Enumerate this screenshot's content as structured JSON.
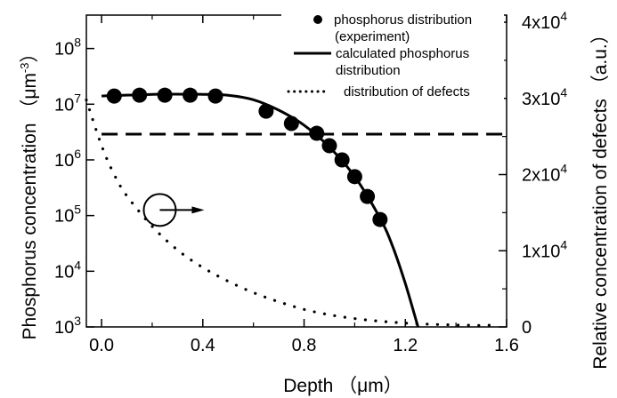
{
  "chart_data": {
    "type": "scatter",
    "xlabel": "Depth （μm）",
    "ylabel_left": "Phosphorus concentration （μm",
    "ylabel_left_sup": "-3",
    "ylabel_left_end": "）",
    "ylabel_right": "Relative concentration of defects （a.u.）",
    "xlim": [
      -0.06,
      1.6
    ],
    "ylim_left_log10": [
      3,
      8.6
    ],
    "ylim_right": [
      0,
      40000
    ],
    "x_ticks": [
      "0.0",
      "0.4",
      "0.8",
      "1.2",
      "1.6"
    ],
    "x_tick_values": [
      0.0,
      0.4,
      0.8,
      1.2,
      1.6
    ],
    "y_left_ticks": [
      {
        "base": "10",
        "exp": "3",
        "value": 1000
      },
      {
        "base": "10",
        "exp": "4",
        "value": 10000
      },
      {
        "base": "10",
        "exp": "5",
        "value": 100000
      },
      {
        "base": "10",
        "exp": "6",
        "value": 1000000
      },
      {
        "base": "10",
        "exp": "7",
        "value": 10000000
      },
      {
        "base": "10",
        "exp": "8",
        "value": 100000000
      }
    ],
    "y_right_ticks": [
      {
        "base": "",
        "exp": "",
        "label": "0",
        "value": 0
      },
      {
        "base": "1x10",
        "exp": "4",
        "value": 10000
      },
      {
        "base": "2x10",
        "exp": "4",
        "value": 20000
      },
      {
        "base": "3x10",
        "exp": "4",
        "value": 30000
      },
      {
        "base": "4x10",
        "exp": "4",
        "value": 40000
      }
    ],
    "legend_position": "top-right",
    "series": [
      {
        "name": "phosphorus distribution (experiment)",
        "legend_lines": [
          "phosphorus distribution",
          "(experiment)"
        ],
        "kind": "scatter",
        "axis": "left",
        "x": [
          0.05,
          0.15,
          0.25,
          0.35,
          0.45,
          0.65,
          0.75,
          0.85,
          0.9,
          0.95,
          1.0,
          1.05,
          1.1
        ],
        "y": [
          14000000.0,
          14500000.0,
          14500000.0,
          14500000.0,
          14000000.0,
          7500000.0,
          4500000.0,
          3000000.0,
          1800000.0,
          1000000.0,
          500000.0,
          220000.0,
          85000.0
        ],
        "color": "#000000"
      },
      {
        "name": "calculated phosphorus distribution",
        "legend_lines": [
          "calculated phosphorus",
          "distribution"
        ],
        "kind": "line",
        "axis": "left",
        "x": [
          0.0,
          0.2,
          0.4,
          0.5,
          0.6,
          0.7,
          0.8,
          0.9,
          1.0,
          1.1,
          1.15,
          1.2,
          1.25
        ],
        "y": [
          14000000.0,
          15000000.0,
          15000000.0,
          14500000.0,
          12000000.0,
          7800000.0,
          4200000.0,
          1700000.0,
          500000.0,
          90000.0,
          28000.0,
          6000.0,
          1000.0
        ],
        "color": "#000000"
      },
      {
        "name": "distribution of defects",
        "legend_lines": [
          "distribution of defects"
        ],
        "kind": "dotted-line",
        "axis": "right",
        "x": [
          -0.06,
          0.0,
          0.05,
          0.1,
          0.2,
          0.3,
          0.4,
          0.5,
          0.6,
          0.7,
          0.8,
          0.9,
          1.0,
          1.1,
          1.2,
          1.3,
          1.4,
          1.5,
          1.55
        ],
        "y": [
          29800,
          23800,
          20000,
          17200,
          13200,
          10100,
          7800,
          6000,
          4500,
          3300,
          2300,
          1600,
          1100,
          750,
          500,
          350,
          250,
          200,
          250
        ],
        "color": "#000000"
      },
      {
        "kind": "dashed-line",
        "axis": "left",
        "x": [
          0.0,
          1.6
        ],
        "y": [
          2900000.0,
          2900000.0
        ],
        "color": "#000000"
      }
    ],
    "annotations": [
      {
        "type": "circle-arrow",
        "points_to_axis": "right",
        "x": 0.23,
        "y_log10": 5.1
      }
    ]
  }
}
